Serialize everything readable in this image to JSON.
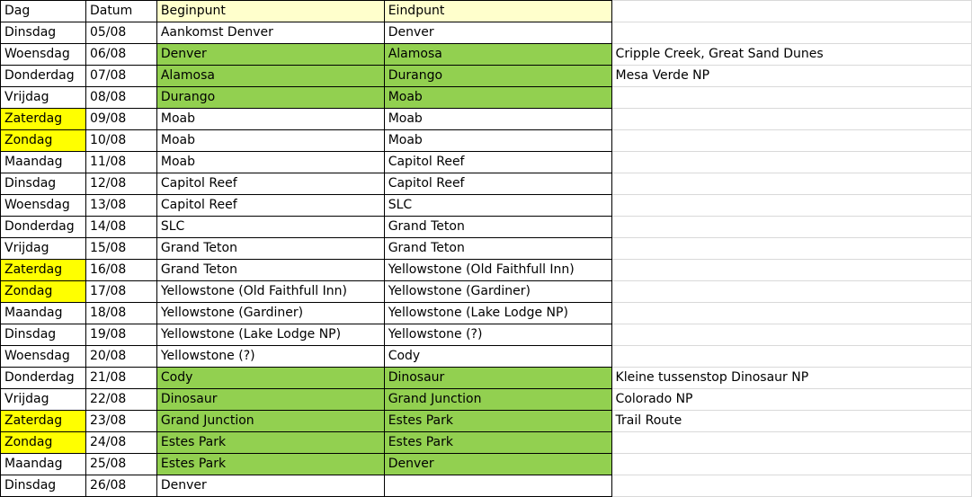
{
  "colors": {
    "green": "#92d050",
    "weekend_yellow": "#ffff00",
    "header_yellow": "#ffffcc"
  },
  "header": {
    "dag": "Dag",
    "datum": "Datum",
    "beginpunt": "Beginpunt",
    "eindpunt": "Eindpunt"
  },
  "rows": [
    {
      "dag": "Dinsdag",
      "datum": "05/08",
      "begin": "Aankomst Denver",
      "eind": "Denver",
      "note": "",
      "weekend": false,
      "green": false
    },
    {
      "dag": "Woensdag",
      "datum": "06/08",
      "begin": "Denver",
      "eind": "Alamosa",
      "note": "Cripple Creek, Great Sand Dunes",
      "weekend": false,
      "green": true
    },
    {
      "dag": "Donderdag",
      "datum": "07/08",
      "begin": "Alamosa",
      "eind": "Durango",
      "note": "Mesa Verde NP",
      "weekend": false,
      "green": true
    },
    {
      "dag": "Vrijdag",
      "datum": "08/08",
      "begin": "Durango",
      "eind": "Moab",
      "note": "",
      "weekend": false,
      "green": true
    },
    {
      "dag": "Zaterdag",
      "datum": "09/08",
      "begin": "Moab",
      "eind": "Moab",
      "note": "",
      "weekend": true,
      "green": false
    },
    {
      "dag": "Zondag",
      "datum": "10/08",
      "begin": "Moab",
      "eind": "Moab",
      "note": "",
      "weekend": true,
      "green": false
    },
    {
      "dag": "Maandag",
      "datum": "11/08",
      "begin": "Moab",
      "eind": "Capitol Reef",
      "note": "",
      "weekend": false,
      "green": false
    },
    {
      "dag": "Dinsdag",
      "datum": "12/08",
      "begin": "Capitol Reef",
      "eind": "Capitol Reef",
      "note": "",
      "weekend": false,
      "green": false
    },
    {
      "dag": "Woensdag",
      "datum": "13/08",
      "begin": "Capitol Reef",
      "eind": "SLC",
      "note": "",
      "weekend": false,
      "green": false
    },
    {
      "dag": "Donderdag",
      "datum": "14/08",
      "begin": "SLC",
      "eind": "Grand Teton",
      "note": "",
      "weekend": false,
      "green": false
    },
    {
      "dag": "Vrijdag",
      "datum": "15/08",
      "begin": "Grand Teton",
      "eind": "Grand Teton",
      "note": "",
      "weekend": false,
      "green": false
    },
    {
      "dag": "Zaterdag",
      "datum": "16/08",
      "begin": "Grand Teton",
      "eind": "Yellowstone (Old Faithfull Inn)",
      "note": "",
      "weekend": true,
      "green": false
    },
    {
      "dag": "Zondag",
      "datum": "17/08",
      "begin": "Yellowstone (Old Faithfull Inn)",
      "eind": "Yellowstone (Gardiner)",
      "note": "",
      "weekend": true,
      "green": false
    },
    {
      "dag": "Maandag",
      "datum": "18/08",
      "begin": "Yellowstone (Gardiner)",
      "eind": "Yellowstone (Lake Lodge NP)",
      "note": "",
      "weekend": false,
      "green": false
    },
    {
      "dag": "Dinsdag",
      "datum": "19/08",
      "begin": "Yellowstone (Lake Lodge NP)",
      "eind": "Yellowstone (?)",
      "note": "",
      "weekend": false,
      "green": false
    },
    {
      "dag": "Woensdag",
      "datum": "20/08",
      "begin": "Yellowstone (?)",
      "eind": "Cody",
      "note": "",
      "weekend": false,
      "green": false
    },
    {
      "dag": "Donderdag",
      "datum": "21/08",
      "begin": "Cody",
      "eind": "Dinosaur",
      "note": "Kleine tussenstop Dinosaur NP",
      "weekend": false,
      "green": true
    },
    {
      "dag": "Vrijdag",
      "datum": "22/08",
      "begin": "Dinosaur",
      "eind": "Grand Junction",
      "note": "Colorado NP",
      "weekend": false,
      "green": true
    },
    {
      "dag": "Zaterdag",
      "datum": "23/08",
      "begin": "Grand Junction",
      "eind": "Estes Park",
      "note": "Trail Route",
      "weekend": true,
      "green": true
    },
    {
      "dag": "Zondag",
      "datum": "24/08",
      "begin": "Estes Park",
      "eind": "Estes Park",
      "note": "",
      "weekend": true,
      "green": true
    },
    {
      "dag": "Maandag",
      "datum": "25/08",
      "begin": "Estes Park",
      "eind": "Denver",
      "note": "",
      "weekend": false,
      "green": true
    },
    {
      "dag": "Dinsdag",
      "datum": "26/08",
      "begin": "Denver",
      "eind": "",
      "note": "",
      "weekend": false,
      "green": false
    }
  ]
}
